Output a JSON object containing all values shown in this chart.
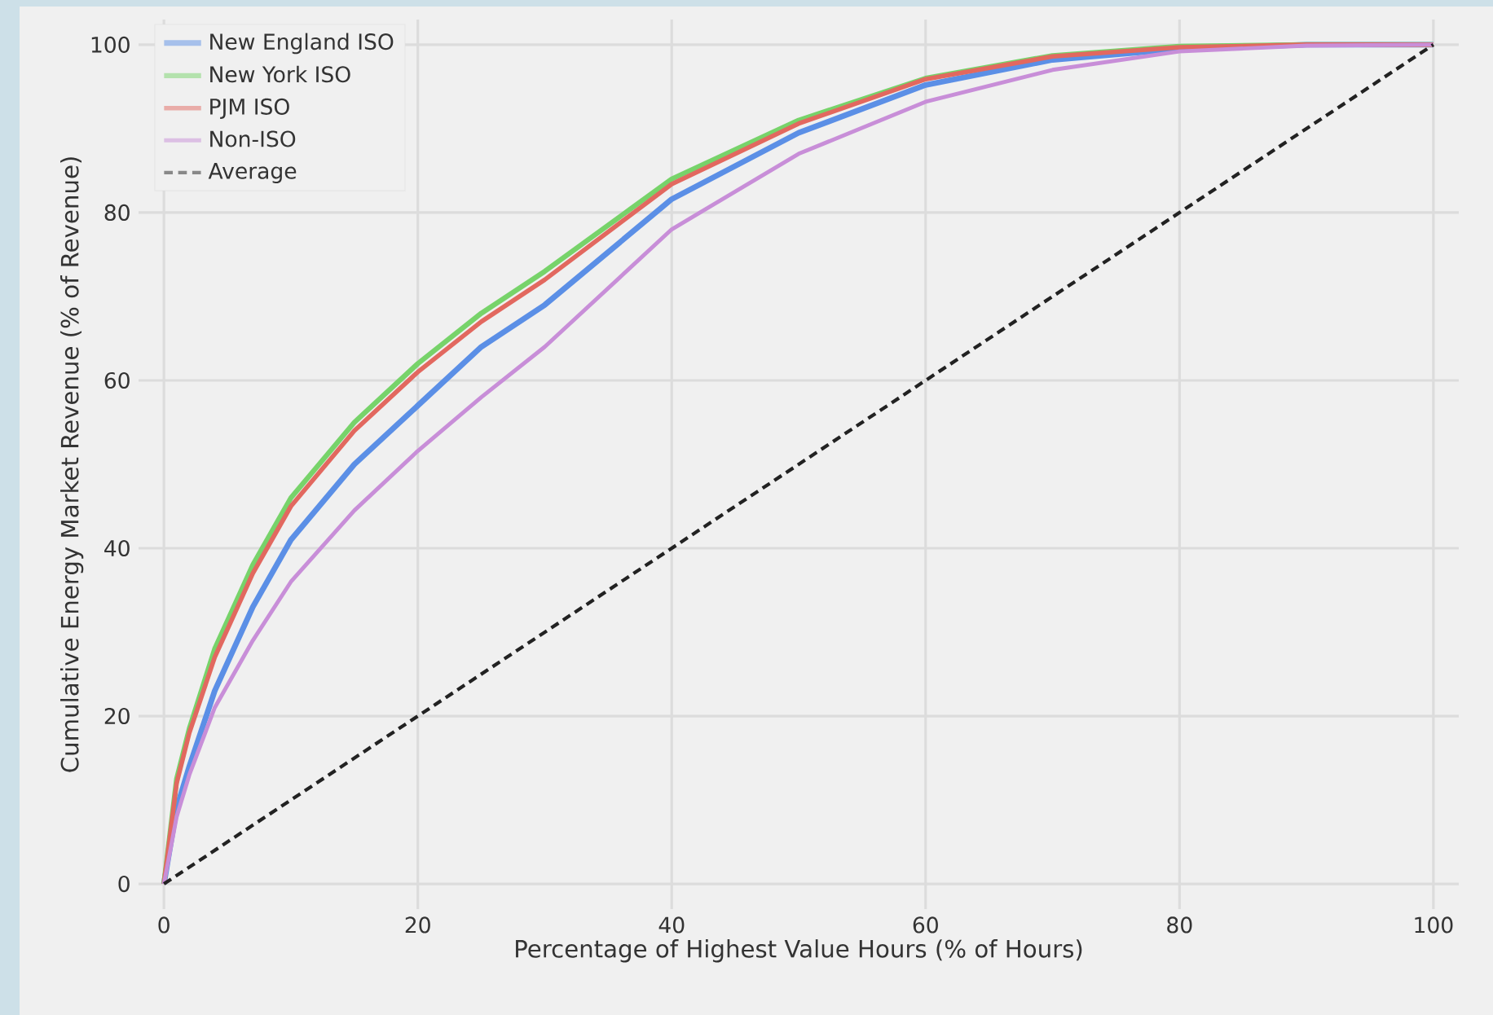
{
  "chart_data": {
    "type": "line",
    "xlabel": "Percentage of Highest Value Hours (% of Hours)",
    "ylabel": "Cumulative Energy Market Revenue (% of Revenue)",
    "xlim": [
      -2,
      102
    ],
    "ylim": [
      -3,
      103
    ],
    "xticks": [
      0,
      20,
      40,
      60,
      80,
      100
    ],
    "yticks": [
      0,
      20,
      40,
      60,
      80,
      100
    ],
    "grid": true,
    "legend": "top left",
    "series": [
      {
        "name": "New England ISO",
        "color": "#5b8fe6",
        "x": [
          0,
          1,
          2,
          4,
          7,
          10,
          15,
          20,
          25,
          30,
          40,
          50,
          60,
          70,
          80,
          90,
          100
        ],
        "values": [
          0,
          9,
          14,
          23,
          33,
          41,
          50,
          57,
          64,
          69,
          81.6,
          89.5,
          95.2,
          98.2,
          99.5,
          100,
          100
        ]
      },
      {
        "name": "New York ISO",
        "color": "#77d36a",
        "x": [
          0,
          1,
          2,
          4,
          7,
          10,
          15,
          20,
          25,
          30,
          40,
          50,
          60,
          70,
          80,
          90,
          100
        ],
        "values": [
          0,
          12.5,
          18.5,
          28,
          38,
          46,
          55,
          62,
          68,
          73,
          84,
          91,
          96,
          98.7,
          99.8,
          100,
          100
        ]
      },
      {
        "name": "PJM ISO",
        "color": "#e2685f",
        "x": [
          0,
          1,
          2,
          4,
          7,
          10,
          15,
          20,
          25,
          30,
          40,
          50,
          60,
          70,
          80,
          90,
          100
        ],
        "values": [
          0,
          12,
          18,
          27,
          37,
          45,
          54,
          61,
          67,
          72,
          83.4,
          90.6,
          95.9,
          98.6,
          99.7,
          100,
          100
        ]
      },
      {
        "name": "Non-ISO",
        "color": "#c88ed8",
        "x": [
          0,
          1,
          2,
          4,
          7,
          10,
          15,
          20,
          25,
          30,
          40,
          50,
          60,
          70,
          80,
          90,
          100
        ],
        "values": [
          0,
          8,
          13,
          21,
          29,
          36,
          44.5,
          51.6,
          58,
          64,
          78,
          87,
          93.2,
          97,
          99.2,
          99.9,
          100
        ]
      },
      {
        "name": "Average",
        "color": "#222222",
        "line_style": "dashed",
        "x": [
          0,
          100
        ],
        "values": [
          0,
          100
        ]
      }
    ]
  }
}
